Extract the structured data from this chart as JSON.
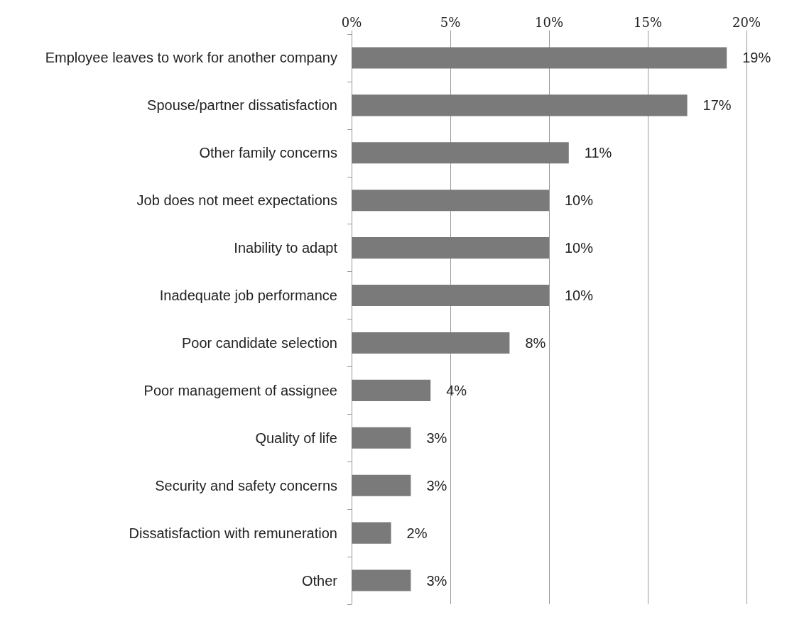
{
  "chart_data": {
    "type": "bar",
    "orientation": "horizontal",
    "categories": [
      "Employee leaves to work for another company",
      "Spouse/partner dissatisfaction",
      "Other family concerns",
      "Job does not meet expectations",
      "Inability to adapt",
      "Inadequate job performance",
      "Poor candidate selection",
      "Poor management of assignee",
      "Quality of life",
      "Security and safety concerns",
      "Dissatisfaction with remuneration",
      "Other"
    ],
    "values": [
      19,
      17,
      11,
      10,
      10,
      10,
      8,
      4,
      3,
      3,
      2,
      3
    ],
    "value_labels": [
      "19%",
      "17%",
      "11%",
      "10%",
      "10%",
      "10%",
      "8%",
      "4%",
      "3%",
      "3%",
      "2%",
      "3%"
    ],
    "color": "#7a7a7a",
    "xlim": [
      0,
      20
    ],
    "xticks": [
      {
        "value": 0,
        "label": "0%"
      },
      {
        "value": 5,
        "label": "5%"
      },
      {
        "value": 10,
        "label": "10%"
      },
      {
        "value": 15,
        "label": "15%"
      },
      {
        "value": 20,
        "label": "20%"
      }
    ],
    "grid": "x"
  }
}
